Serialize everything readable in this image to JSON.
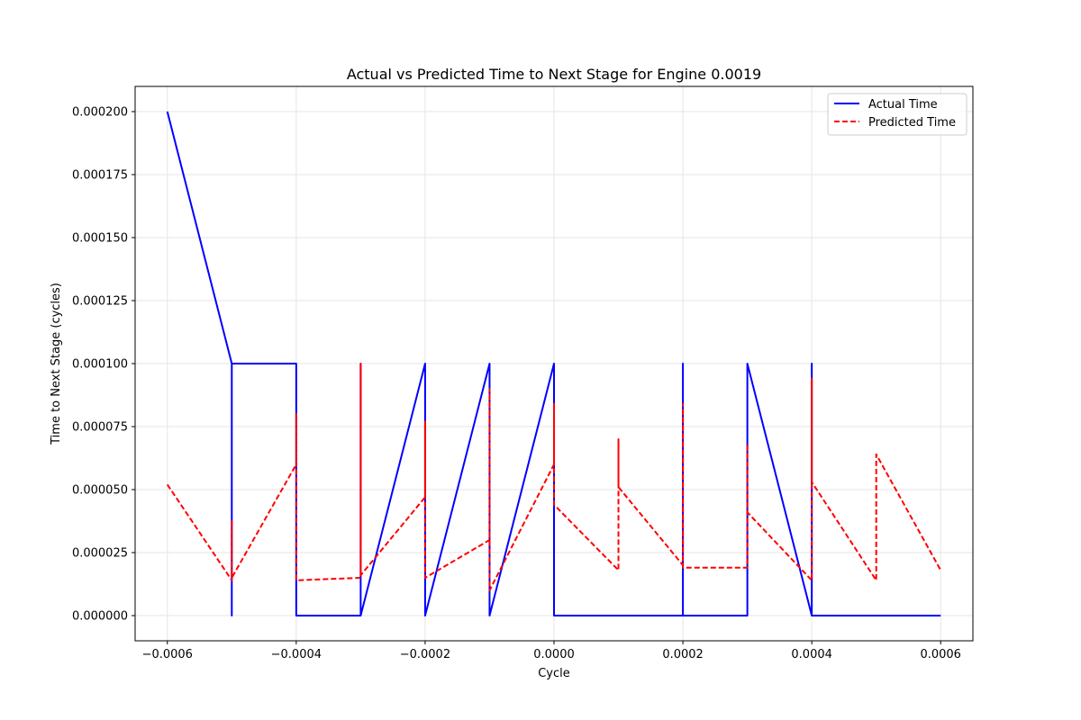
{
  "chart_data": {
    "type": "line",
    "title": "Actual vs Predicted Time to Next Stage for Engine 0.0019",
    "xlabel": "Cycle",
    "ylabel": "Time to Next Stage (cycles)",
    "xlim": [
      -0.00065,
      0.00065
    ],
    "ylim": [
      -1e-05,
      0.00021
    ],
    "x_ticks": [
      -0.0006,
      -0.0004,
      -0.0002,
      0.0,
      0.0002,
      0.0004,
      0.0006
    ],
    "x_tick_labels": [
      "−0.0006",
      "−0.0004",
      "−0.0002",
      "0.0000",
      "0.0002",
      "0.0004",
      "0.0006"
    ],
    "y_ticks": [
      0.0,
      2.5e-05,
      5e-05,
      7.5e-05,
      0.0001,
      0.000125,
      0.00015,
      0.000175,
      0.0002
    ],
    "y_tick_labels": [
      "0.000000",
      "0.000025",
      "0.000050",
      "0.000075",
      "0.000100",
      "0.000125",
      "0.000150",
      "0.000175",
      "0.000200"
    ],
    "grid": true,
    "legend_position": "top-right",
    "series": [
      {
        "name": "Actual Time",
        "color": "#0000ff",
        "style": "solid",
        "x": [
          -0.0006,
          -0.0005,
          -0.0005,
          -0.0005,
          -0.0004,
          -0.0004,
          -0.0003,
          -0.0003,
          -0.0003,
          -0.0002,
          -0.0002,
          -0.0001,
          -0.0001,
          0.0,
          0.0,
          0.0002,
          0.0002,
          0.0002,
          0.0003,
          0.0003,
          0.0004,
          0.0004,
          0.0004,
          0.0006
        ],
        "y": [
          0.0002,
          0.0001,
          0.0,
          0.0001,
          0.0001,
          0.0,
          0.0,
          0.0001,
          0.0,
          0.0001,
          0.0,
          0.0001,
          0.0,
          0.0001,
          0.0,
          0.0,
          0.0001,
          0.0,
          0.0,
          0.0001,
          0.0,
          0.0001,
          0.0,
          0.0
        ]
      },
      {
        "name": "Predicted Time",
        "color": "#ff0000",
        "style": "dashed",
        "x": [
          -0.0006,
          -0.0005,
          -0.0005,
          -0.0005,
          -0.0004,
          -0.0004,
          -0.0004,
          -0.0003,
          -0.0003,
          -0.0003,
          -0.0002,
          -0.0002,
          -0.0002,
          -0.0001,
          -0.0001,
          -0.0001,
          0.0,
          0.0,
          0.0,
          0.0001,
          0.0001,
          0.0001,
          0.0002,
          0.0002,
          0.0002,
          0.0003,
          0.0003,
          0.0003,
          0.0004,
          0.0004,
          0.0004,
          0.0005,
          0.0005,
          0.0006
        ],
        "y": [
          5.2e-05,
          1.4e-05,
          3.8e-05,
          1.5e-05,
          6e-05,
          8e-05,
          1.4e-05,
          1.5e-05,
          0.0001,
          1.6e-05,
          4.7e-05,
          7.7e-05,
          1.5e-05,
          3e-05,
          9e-05,
          1e-05,
          6e-05,
          8.4e-05,
          4.4e-05,
          1.8e-05,
          7e-05,
          5.1e-05,
          2e-05,
          8.4e-05,
          1.9e-05,
          1.9e-05,
          6.8e-05,
          4.1e-05,
          1.4e-05,
          9.4e-05,
          5.3e-05,
          1.4e-05,
          6.4e-05,
          1.8e-05
        ]
      }
    ]
  }
}
